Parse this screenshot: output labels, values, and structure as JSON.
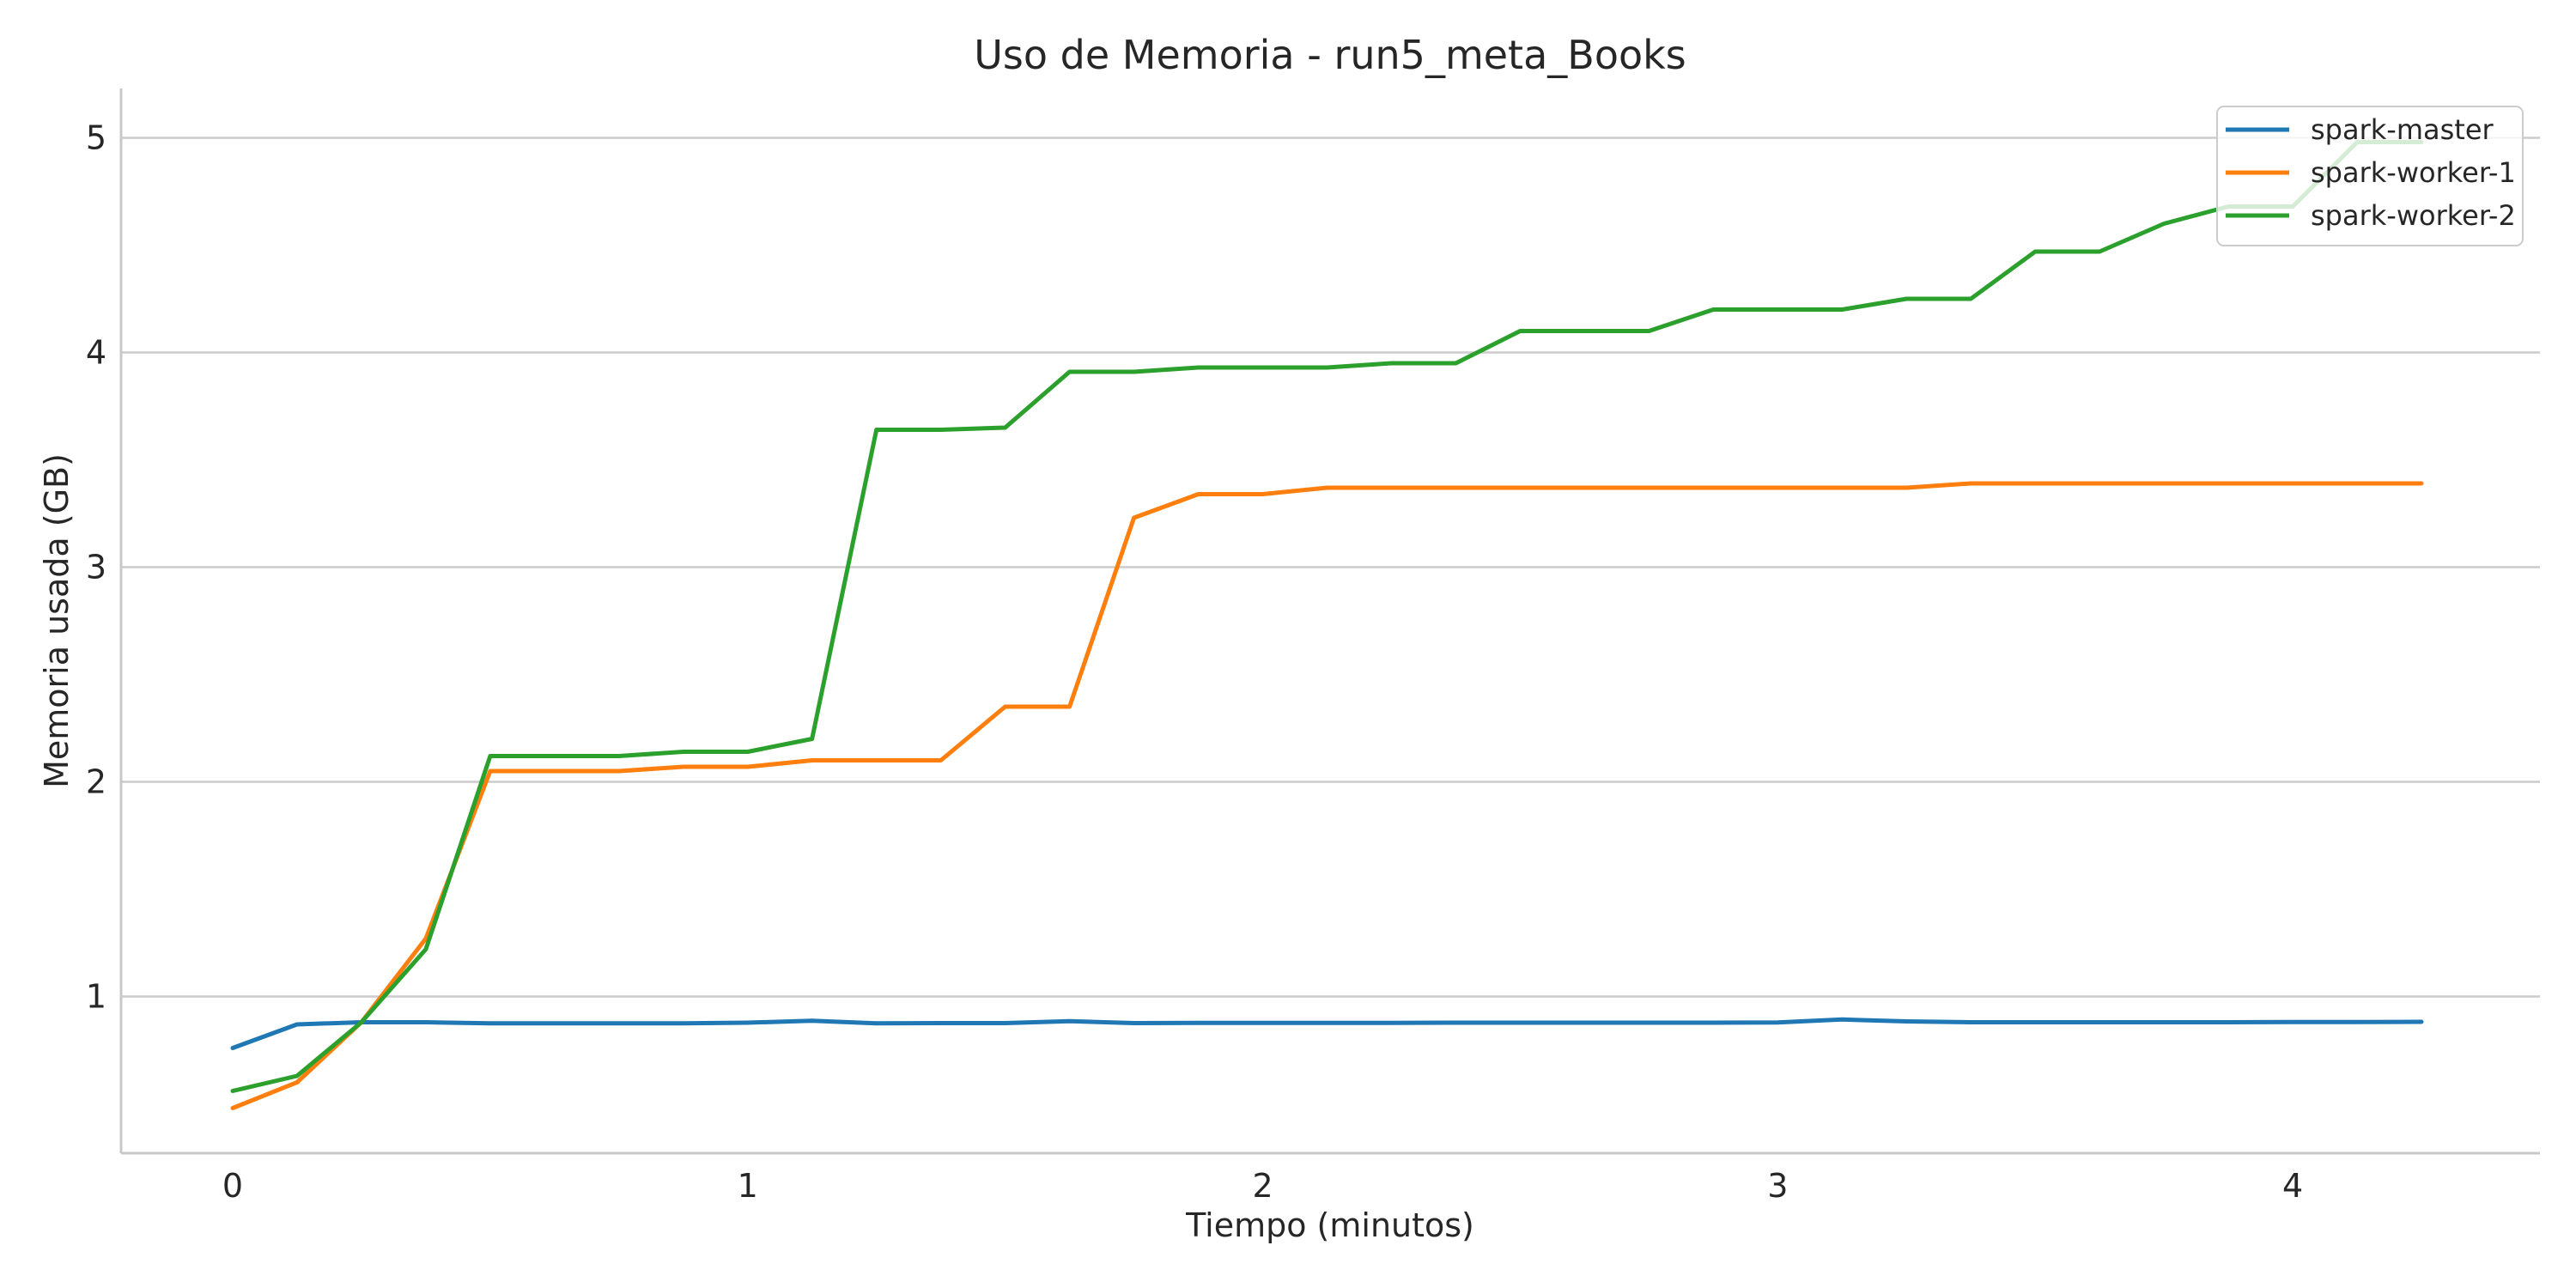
{
  "chart_data": {
    "type": "line",
    "title": "Uso de Memoria - run5_meta_Books",
    "xlabel": "Tiempo (minutos)",
    "ylabel": "Memoria usada (GB)",
    "xlim": [
      -0.2167,
      4.48
    ],
    "ylim": [
      0.27,
      5.23
    ],
    "xticks": [
      0,
      1,
      2,
      3,
      4
    ],
    "yticks": [
      1,
      2,
      3,
      4,
      5
    ],
    "grid": "horizontal",
    "legend_position": "top-right",
    "x": [
      0,
      0.125,
      0.25,
      0.375,
      0.5,
      0.625,
      0.75,
      0.875,
      1.0,
      1.125,
      1.25,
      1.375,
      1.5,
      1.625,
      1.75,
      1.875,
      2.0,
      2.125,
      2.25,
      2.375,
      2.5,
      2.625,
      2.75,
      2.875,
      3.0,
      3.125,
      3.25,
      3.375,
      3.5,
      3.625,
      3.75,
      3.875,
      4.0,
      4.125,
      4.25
    ],
    "series": [
      {
        "name": "spark-master",
        "color": "#1f77b4",
        "values": [
          0.76,
          0.87,
          0.88,
          0.88,
          0.875,
          0.875,
          0.875,
          0.875,
          0.878,
          0.887,
          0.875,
          0.876,
          0.876,
          0.885,
          0.876,
          0.877,
          0.877,
          0.877,
          0.877,
          0.878,
          0.878,
          0.878,
          0.878,
          0.878,
          0.879,
          0.893,
          0.884,
          0.88,
          0.88,
          0.88,
          0.88,
          0.88,
          0.881,
          0.881,
          0.882
        ]
      },
      {
        "name": "spark-worker-1",
        "color": "#ff7f0e",
        "values": [
          0.48,
          0.6,
          0.88,
          1.27,
          2.05,
          2.05,
          2.05,
          2.07,
          2.07,
          2.1,
          2.1,
          2.1,
          2.35,
          2.35,
          3.23,
          3.34,
          3.34,
          3.37,
          3.37,
          3.37,
          3.37,
          3.37,
          3.37,
          3.37,
          3.37,
          3.37,
          3.37,
          3.39,
          3.39,
          3.39,
          3.39,
          3.39,
          3.39,
          3.39,
          3.39
        ]
      },
      {
        "name": "spark-worker-2",
        "color": "#2ca02c",
        "values": [
          0.56,
          0.63,
          0.88,
          1.22,
          2.12,
          2.12,
          2.12,
          2.14,
          2.14,
          2.2,
          3.64,
          3.64,
          3.65,
          3.91,
          3.91,
          3.93,
          3.93,
          3.93,
          3.95,
          3.95,
          4.1,
          4.1,
          4.1,
          4.2,
          4.2,
          4.2,
          4.25,
          4.25,
          4.47,
          4.47,
          4.6,
          4.68,
          4.68,
          4.98,
          4.98
        ]
      }
    ]
  }
}
